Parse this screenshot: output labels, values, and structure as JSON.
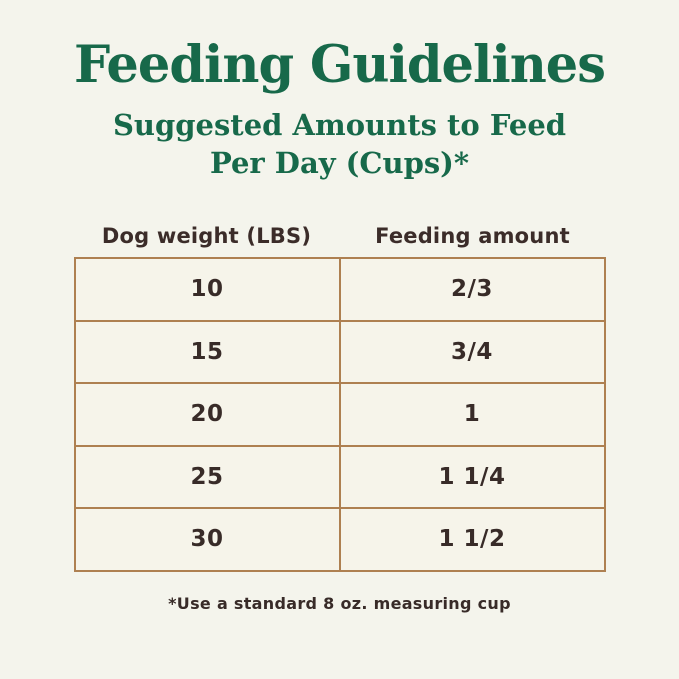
{
  "page": {
    "title": "Feeding Guidelines",
    "subtitle_line1": "Suggested Amounts to Feed",
    "subtitle_line2": "Per Day (Cups)*",
    "footnote": "*Use a standard 8 oz. measuring cup"
  },
  "table": {
    "columns": [
      "Dog weight (LBS)",
      "Feeding amount"
    ],
    "rows": [
      {
        "weight": "10",
        "amount": "2/3"
      },
      {
        "weight": "15",
        "amount": "3/4"
      },
      {
        "weight": "20",
        "amount": "1"
      },
      {
        "weight": "25",
        "amount": "1 1/4"
      },
      {
        "weight": "30",
        "amount": "1 1/2"
      }
    ]
  },
  "colors": {
    "background": "#f4f4ec",
    "heading_green": "#17694a",
    "table_border": "#ae8051",
    "text_dark": "#382b28"
  }
}
